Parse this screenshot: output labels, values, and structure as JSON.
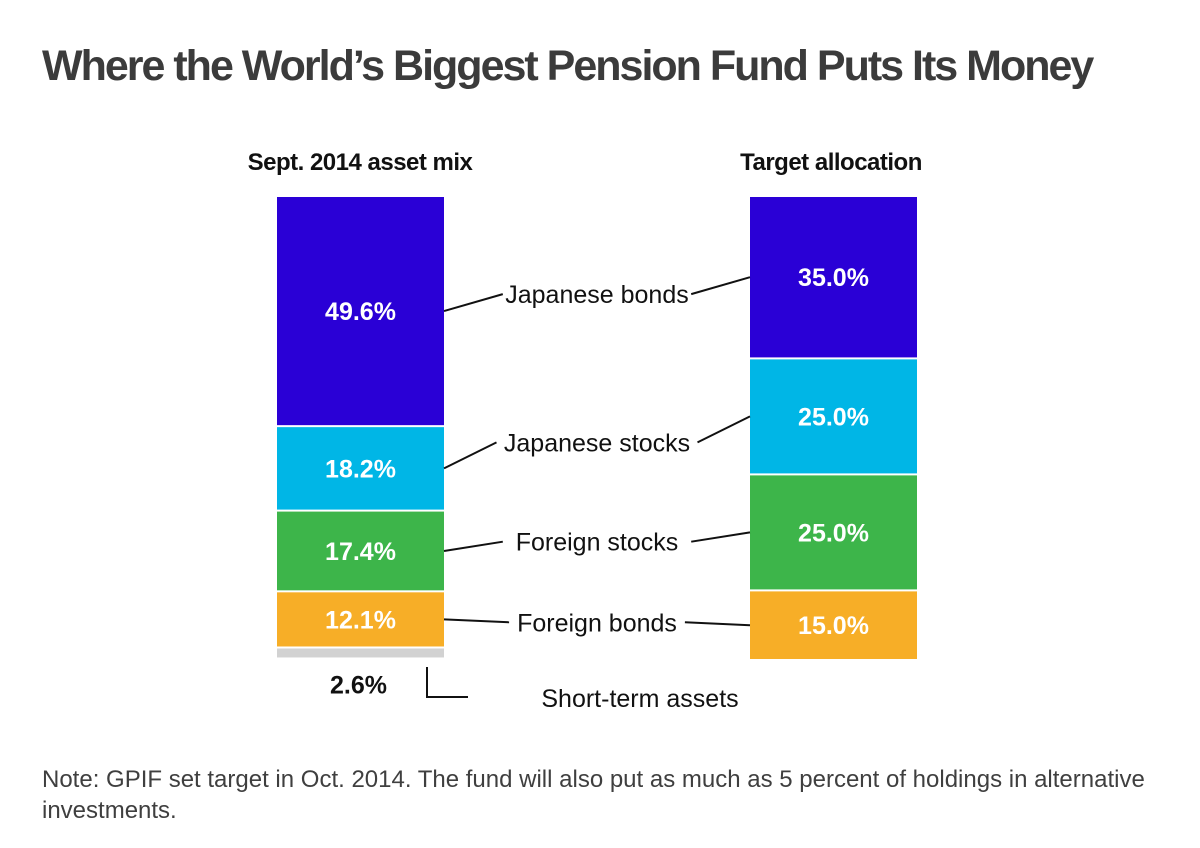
{
  "chart_data": {
    "type": "bar",
    "title": "Where the World’s Biggest Pension Fund Puts Its Money",
    "columns": [
      {
        "name": "Sept. 2014 asset mix",
        "segments": [
          {
            "category": "Japanese bonds",
            "value": 49.6,
            "label": "49.6%"
          },
          {
            "category": "Japanese stocks",
            "value": 18.2,
            "label": "18.2%"
          },
          {
            "category": "Foreign stocks",
            "value": 17.4,
            "label": "17.4%"
          },
          {
            "category": "Foreign bonds",
            "value": 12.1,
            "label": "12.1%"
          },
          {
            "category": "Short-term assets",
            "value": 2.6,
            "label": "2.6%"
          }
        ]
      },
      {
        "name": "Target allocation",
        "segments": [
          {
            "category": "Japanese bonds",
            "value": 35.0,
            "label": "35.0%"
          },
          {
            "category": "Japanese stocks",
            "value": 25.0,
            "label": "25.0%"
          },
          {
            "category": "Foreign stocks",
            "value": 25.0,
            "label": "25.0%"
          },
          {
            "category": "Foreign bonds",
            "value": 15.0,
            "label": "15.0%"
          }
        ]
      }
    ],
    "category_labels": [
      "Japanese bonds",
      "Japanese stocks",
      "Foreign stocks",
      "Foreign bonds",
      "Short-term assets"
    ],
    "colors": {
      "Japanese bonds": "#2a00d6",
      "Japanese stocks": "#00b6e6",
      "Foreign stocks": "#3db54a",
      "Foreign bonds": "#f7ae27",
      "Short-term assets": "#d2d2d2"
    },
    "note": "Note: GPIF set target in Oct. 2014. The fund will also put as much as 5 percent of holdings in alternative investments."
  }
}
